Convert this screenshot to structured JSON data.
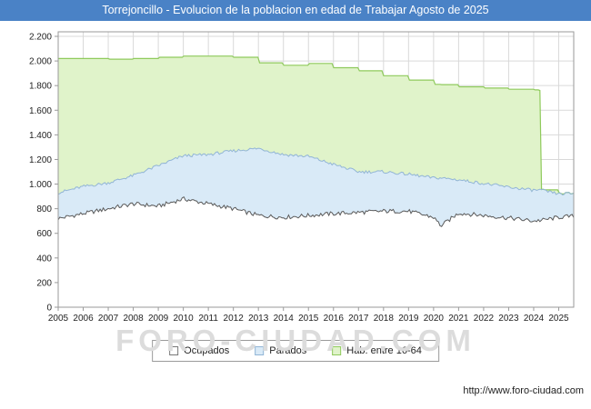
{
  "window": {
    "title": "Torrejoncillo - Evolucion de la poblacion en edad de Trabajar Agosto de 2025"
  },
  "watermark": "FORO-CIUDAD.COM",
  "footer": {
    "url": "http://www.foro-ciudad.com"
  },
  "legend": {
    "items": [
      {
        "label": "Ocupados",
        "swatch_fill": "#ffffff",
        "swatch_border": "#777777"
      },
      {
        "label": "Parados",
        "swatch_fill": "#d9eaf7",
        "swatch_border": "#92b5d6"
      },
      {
        "label": "Hab. entre 16-64",
        "swatch_fill": "#e0f3ca",
        "swatch_border": "#8fca5c"
      }
    ]
  },
  "colors": {
    "title_bar_bg": "#4a82c6",
    "grid": "#d9d9d9",
    "axis": "#9a9a9a",
    "ocupados_fill": "#ffffff",
    "ocupados_stroke": "#5a5a5a",
    "parados_fill": "#d9eaf7",
    "parados_stroke": "#92b5d6",
    "hab_fill": "#e0f3ca",
    "hab_stroke": "#8fca5c",
    "watermark": "#dcdcdc",
    "tick_text": "#222222"
  },
  "chart_data": {
    "type": "area",
    "title": "Torrejoncillo - Evolucion de la poblacion en edad de Trabajar Agosto de 2025",
    "xlabel": "",
    "ylabel": "",
    "xlim": [
      2005,
      2025.6
    ],
    "ylim": [
      0,
      2200
    ],
    "ytick_step": 200,
    "grid": true,
    "legend_position": "bottom",
    "x": [
      2005,
      2006,
      2007,
      2008,
      2009,
      2010,
      2011,
      2012,
      2013,
      2014,
      2015,
      2016,
      2017,
      2018,
      2019,
      2020,
      2020.3,
      2021,
      2022,
      2023,
      2024,
      2024.2,
      2024.3,
      2025,
      2025.6
    ],
    "series": [
      {
        "name": "Ocupados",
        "values": [
          720,
          760,
          800,
          840,
          820,
          880,
          840,
          800,
          745,
          730,
          745,
          760,
          770,
          780,
          780,
          730,
          660,
          765,
          745,
          725,
          700,
          705,
          705,
          730,
          740
        ]
      },
      {
        "name": "Parados",
        "values": [
          210,
          220,
          210,
          230,
          330,
          350,
          400,
          470,
          545,
          510,
          480,
          400,
          330,
          320,
          300,
          320,
          390,
          270,
          260,
          250,
          250,
          248,
          245,
          190,
          185
        ]
      },
      {
        "name": "Hab. entre 16-64",
        "values": [
          2020,
          2020,
          2015,
          2020,
          2030,
          2040,
          2040,
          2030,
          1985,
          1965,
          1980,
          1945,
          1920,
          1880,
          1845,
          1810,
          1808,
          1790,
          1780,
          1770,
          1765,
          1760,
          953,
          920,
          925
        ]
      }
    ],
    "xticks": [
      2005,
      2006,
      2007,
      2008,
      2009,
      2010,
      2011,
      2012,
      2013,
      2014,
      2015,
      2016,
      2017,
      2018,
      2019,
      2020,
      2021,
      2022,
      2023,
      2024,
      2025
    ],
    "xticklabels": [
      "2005",
      "2006",
      "2007",
      "2008",
      "2009",
      "2010",
      "2011",
      "2012",
      "2013",
      "2014",
      "2015",
      "2016",
      "2017",
      "2018",
      "2019",
      "2020",
      "2021",
      "2022",
      "2023",
      "2024",
      "2025"
    ],
    "yticklabels": [
      "0",
      "200",
      "400",
      "600",
      "800",
      "1.000",
      "1.200",
      "1.400",
      "1.600",
      "1.800",
      "2.000",
      "2.200"
    ]
  }
}
